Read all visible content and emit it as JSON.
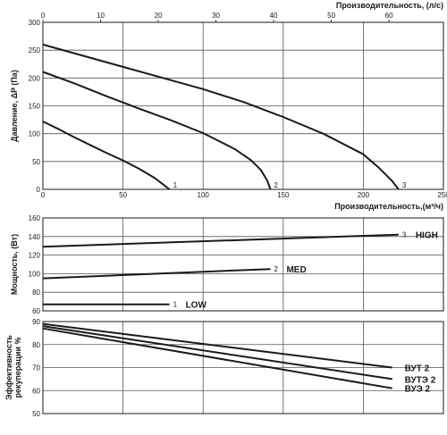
{
  "chart_data": [
    {
      "type": "line",
      "xlabel": "Производительность,(м³/ч)",
      "ylabel": "Давление, ΔP (Па)",
      "x2label": "Производительность, (л/с)",
      "xlim": [
        0,
        250
      ],
      "ylim": [
        0,
        300
      ],
      "x_ticks": [
        0,
        50,
        100,
        150,
        200,
        250
      ],
      "y_ticks": [
        0,
        50,
        100,
        150,
        200,
        250,
        300
      ],
      "x2lim": [
        0,
        69.44
      ],
      "x2_ticks": [
        0,
        10,
        20,
        30,
        40,
        50,
        60
      ],
      "grid": true,
      "color": "#1a1a1a",
      "series": [
        {
          "name": "1",
          "x": [
            0,
            10,
            20,
            30,
            40,
            50,
            60,
            70,
            75,
            79
          ],
          "y": [
            122,
            108,
            93,
            79,
            65,
            52,
            37,
            20,
            9,
            0
          ]
        },
        {
          "name": "2",
          "x": [
            0,
            20,
            40,
            60,
            80,
            100,
            120,
            130,
            136,
            140,
            142
          ],
          "y": [
            211,
            190,
            167,
            145,
            124,
            101,
            72,
            52,
            35,
            16,
            0
          ]
        },
        {
          "name": "3",
          "x": [
            0,
            25,
            50,
            75,
            100,
            125,
            150,
            175,
            200,
            210,
            218,
            222
          ],
          "y": [
            260,
            240,
            220,
            200,
            180,
            157,
            130,
            100,
            63,
            38,
            15,
            0
          ]
        }
      ]
    },
    {
      "type": "line",
      "ylabel": "Мощность, (Вт)",
      "xlim": [
        0,
        250
      ],
      "ylim": [
        60,
        160
      ],
      "y_ticks": [
        60,
        80,
        100,
        120,
        140,
        160
      ],
      "grid": true,
      "color": "#1a1a1a",
      "series": [
        {
          "name": "1",
          "label": "LOW",
          "x": [
            0,
            79
          ],
          "y": [
            67,
            67
          ]
        },
        {
          "name": "2",
          "label": "MED",
          "x": [
            0,
            142
          ],
          "y": [
            95,
            105
          ]
        },
        {
          "name": "3",
          "label": "HIGH",
          "x": [
            0,
            222
          ],
          "y": [
            129,
            142
          ]
        }
      ]
    },
    {
      "type": "line",
      "ylabel": "Эффективность рекуперации %",
      "xlim": [
        0,
        250
      ],
      "ylim": [
        50,
        90
      ],
      "y_ticks": [
        50,
        60,
        70,
        80,
        90
      ],
      "grid": true,
      "color": "#1a1a1a",
      "series": [
        {
          "name": "ВУТ 2",
          "x": [
            0,
            218
          ],
          "y": [
            89,
            70
          ]
        },
        {
          "name": "ВУТЭ 2",
          "x": [
            0,
            218
          ],
          "y": [
            88,
            65
          ]
        },
        {
          "name": "ВУЭ 2",
          "x": [
            0,
            218
          ],
          "y": [
            87,
            61
          ]
        }
      ]
    }
  ]
}
